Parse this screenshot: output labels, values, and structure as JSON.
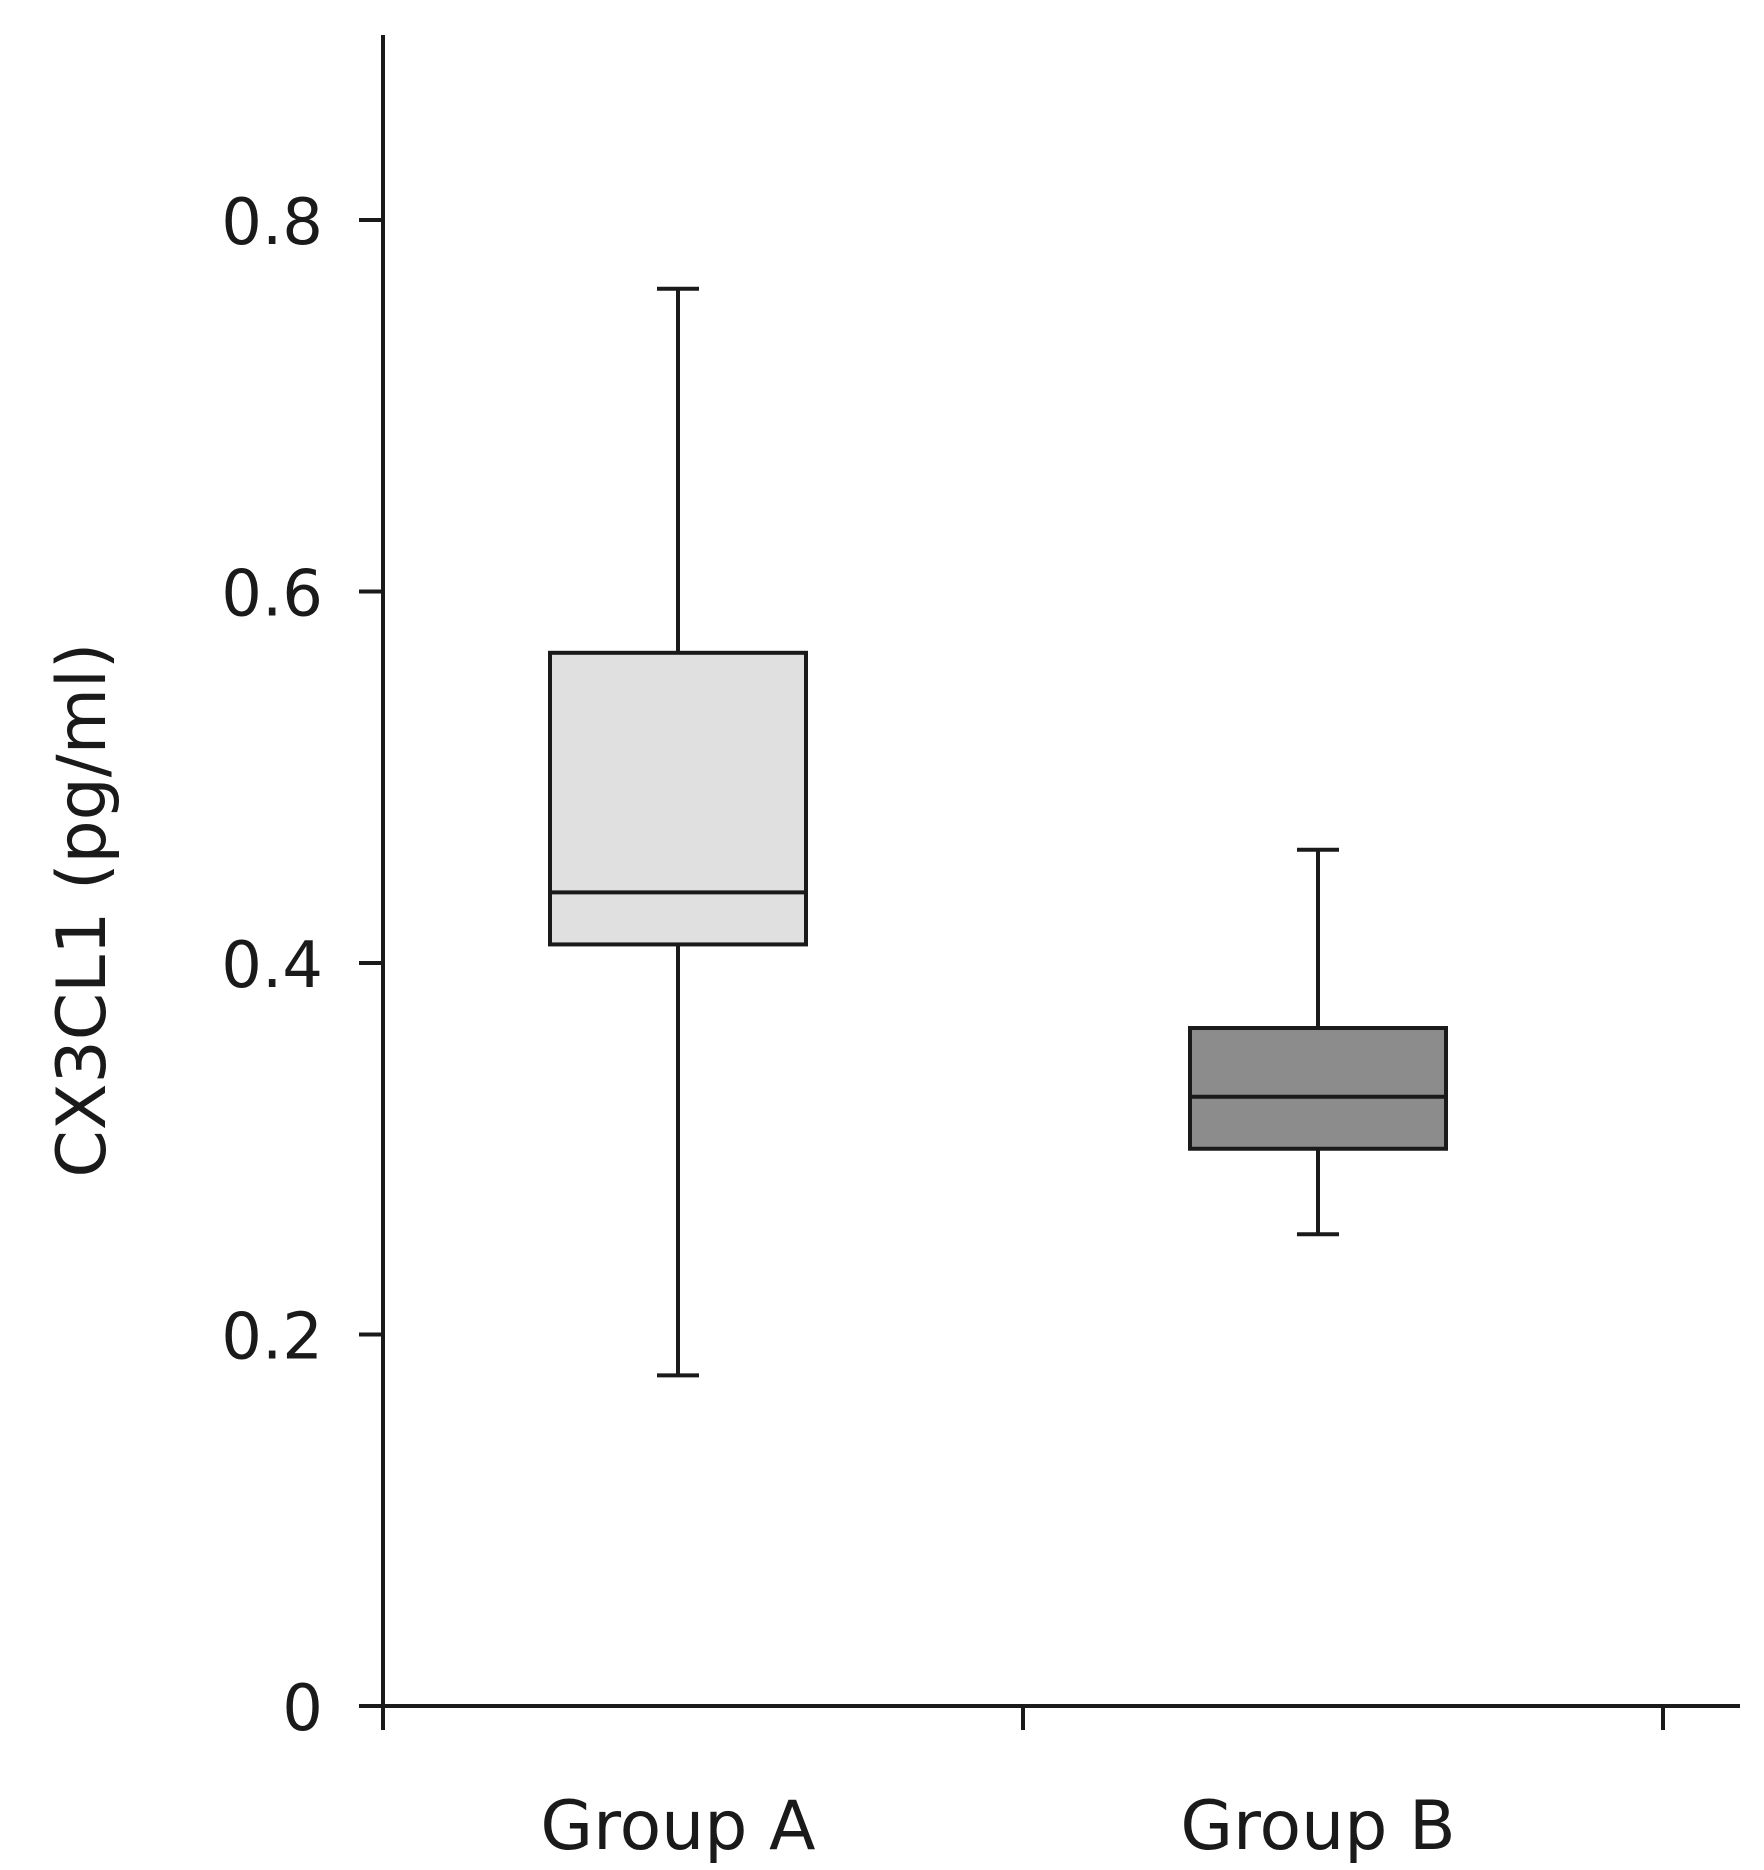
{
  "chart_data": {
    "type": "box",
    "title": "",
    "xlabel": "",
    "ylabel": "CX3CL1 (pg/ml)",
    "ylim": [
      0,
      0.9
    ],
    "yticks": [
      0,
      0.2,
      0.4,
      0.6,
      0.8
    ],
    "ytick_labels": [
      "0",
      "0.2",
      "0.4",
      "0.6",
      "0.8"
    ],
    "grid": false,
    "categories": [
      "Group A",
      "Group B"
    ],
    "series": [
      {
        "name": "Group A",
        "min": 0.178,
        "q1": 0.41,
        "median": 0.438,
        "q3": 0.567,
        "max": 0.763,
        "fill": "#e0e0e0"
      },
      {
        "name": "Group B",
        "min": 0.254,
        "q1": 0.3,
        "median": 0.328,
        "q3": 0.365,
        "max": 0.461,
        "fill": "#8c8c8c"
      }
    ]
  }
}
